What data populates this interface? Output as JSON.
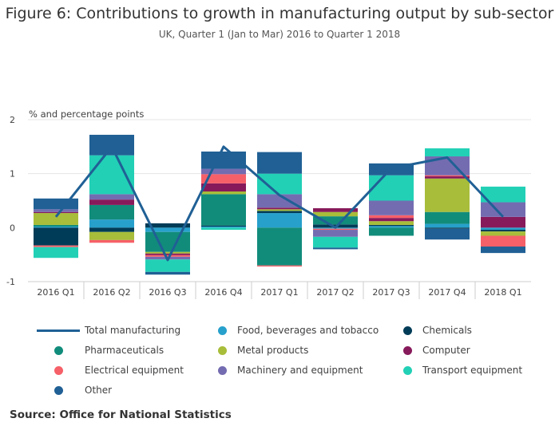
{
  "title": "Figure 6: Contributions to growth in manufacturing output by sub-sector",
  "subtitle": "UK, Quarter 1 (Jan to Mar) 2016 to Quarter 1 2018",
  "source": "Source: Office for National Statistics",
  "chart_data": {
    "type": "bar",
    "stacked": true,
    "title": "Figure 6: Contributions to growth in manufacturing output by sub-sector",
    "subtitle": "UK, Quarter 1 (Jan to Mar) 2016 to Quarter 1 2018",
    "ylabel": "% and percentage points",
    "xlabel": "",
    "ylim": [
      -1,
      2
    ],
    "yticks": [
      -1,
      0,
      1,
      2
    ],
    "ytick_labels": [
      "-1",
      "0",
      "1",
      "2"
    ],
    "grid": true,
    "legend_position": "bottom",
    "categories": [
      "2016 Q1",
      "2016 Q2",
      "2016 Q3",
      "2016 Q4",
      "2017 Q1",
      "2017 Q2",
      "2017 Q3",
      "2017 Q4",
      "2018 Q1"
    ],
    "line_series": {
      "name": "Total manufacturing",
      "color": "#206095",
      "values": [
        0.2,
        1.5,
        -0.6,
        1.5,
        0.6,
        0.0,
        1.1,
        1.3,
        0.2
      ]
    },
    "series": [
      {
        "name": "Food, beverages and tobacco",
        "color": "#27a0cc",
        "values": [
          0.02,
          0.15,
          -0.08,
          0.02,
          0.27,
          -0.02,
          0.03,
          0.07,
          -0.04
        ]
      },
      {
        "name": "Chemicals",
        "color": "#003c57",
        "values": [
          -0.33,
          -0.08,
          0.08,
          0.02,
          0.04,
          0.06,
          0.02,
          -0.02,
          -0.03
        ]
      },
      {
        "name": "Pharmaceuticals",
        "color": "#118c7b",
        "values": [
          0.03,
          0.27,
          -0.37,
          0.58,
          -0.7,
          0.15,
          -0.15,
          0.22,
          0.0
        ]
      },
      {
        "name": "Metal products",
        "color": "#a8bd3a",
        "values": [
          0.22,
          -0.15,
          -0.03,
          0.05,
          0.03,
          0.08,
          0.07,
          0.62,
          -0.08
        ]
      },
      {
        "name": "Computer",
        "color": "#871a5b",
        "values": [
          0.02,
          0.1,
          -0.03,
          0.15,
          0.03,
          0.07,
          0.06,
          0.04,
          0.2
        ]
      },
      {
        "name": "Electrical equipment",
        "color": "#f66068",
        "values": [
          -0.03,
          -0.05,
          -0.03,
          0.17,
          -0.02,
          -0.02,
          0.05,
          0.02,
          -0.2
        ]
      },
      {
        "name": "Machinery and equipment",
        "color": "#746cb1",
        "values": [
          0.05,
          0.1,
          -0.05,
          0.1,
          0.25,
          -0.13,
          0.27,
          0.35,
          0.27
        ]
      },
      {
        "name": "Transport equipment",
        "color": "#22d0b6",
        "values": [
          -0.2,
          0.72,
          -0.23,
          -0.04,
          0.38,
          -0.2,
          0.47,
          0.15,
          0.29
        ]
      },
      {
        "name": "Other",
        "color": "#206095",
        "values": [
          0.2,
          0.38,
          -0.05,
          0.32,
          0.4,
          -0.03,
          0.22,
          -0.2,
          -0.12
        ]
      }
    ]
  },
  "legend": [
    {
      "label": "Total manufacturing",
      "type": "line",
      "color": "#206095"
    },
    {
      "label": "Food, beverages and tobacco",
      "type": "dot",
      "color": "#27a0cc"
    },
    {
      "label": "Chemicals",
      "type": "dot",
      "color": "#003c57"
    },
    {
      "label": "Pharmaceuticals",
      "type": "dot",
      "color": "#118c7b"
    },
    {
      "label": "Metal products",
      "type": "dot",
      "color": "#a8bd3a"
    },
    {
      "label": "Computer",
      "type": "dot",
      "color": "#871a5b"
    },
    {
      "label": "Electrical equipment",
      "type": "dot",
      "color": "#f66068"
    },
    {
      "label": "Machinery and equipment",
      "type": "dot",
      "color": "#746cb1"
    },
    {
      "label": "Transport equipment",
      "type": "dot",
      "color": "#22d0b6"
    },
    {
      "label": "Other",
      "type": "dot",
      "color": "#206095"
    }
  ]
}
